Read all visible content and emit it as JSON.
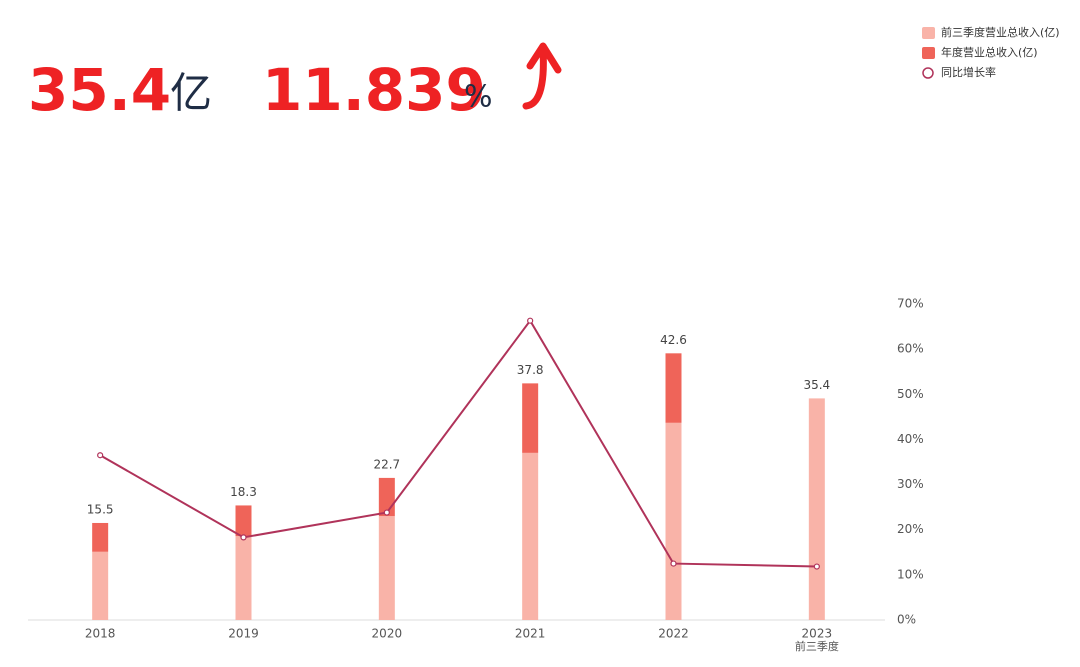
{
  "header": {
    "value": "35.4",
    "unit": "亿",
    "growth": "11.839",
    "growth_unit": "%"
  },
  "chart_data": {
    "type": "bar",
    "categories": [
      "2018",
      "2019",
      "2020",
      "2021",
      "2022",
      "2023"
    ],
    "annotations": [
      "前三季度"
    ],
    "series": [
      {
        "name": "前三季度营业总收入(亿)",
        "color": "#f9b3a8",
        "values": [
          10.9,
          13.4,
          16.6,
          26.7,
          31.5,
          35.4
        ]
      },
      {
        "name": "年度营业总收入(亿)",
        "color": "#ef6459",
        "values": [
          4.6,
          4.9,
          6.1,
          11.1,
          11.1,
          null
        ]
      },
      {
        "name": "同比增长率",
        "color": "#b0335a",
        "type": "line",
        "axis": "y2",
        "values": [
          36.5,
          18.3,
          23.8,
          66.3,
          12.5,
          11.839
        ]
      }
    ],
    "totals": [
      15.5,
      18.3,
      22.7,
      37.8,
      42.6,
      35.4
    ],
    "ylim": [
      0,
      50
    ],
    "y2lim": [
      0,
      70
    ],
    "y2ticks": [
      {
        "value": 0,
        "label": "0%"
      },
      {
        "value": 10,
        "label": "10%"
      },
      {
        "value": 20,
        "label": "20%"
      },
      {
        "value": 30,
        "label": "30%"
      },
      {
        "value": 40,
        "label": "40%"
      },
      {
        "value": 50,
        "label": "50%"
      },
      {
        "value": 60,
        "label": "60%"
      },
      {
        "value": 70,
        "label": "70%"
      }
    ],
    "legend": "top-right"
  }
}
